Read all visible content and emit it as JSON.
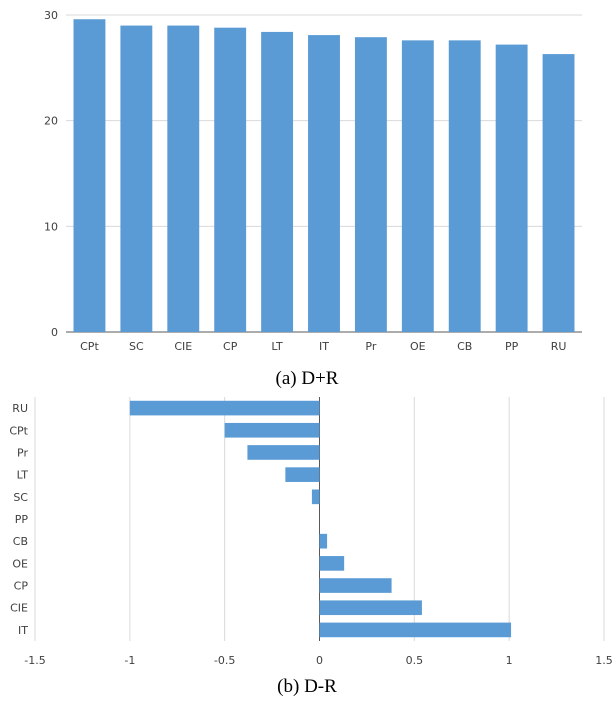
{
  "chart_data": [
    {
      "type": "bar",
      "orientation": "vertical",
      "caption": "(a) D+R",
      "categories": [
        "CPt",
        "SC",
        "CIE",
        "CP",
        "LT",
        "IT",
        "Pr",
        "OE",
        "CB",
        "PP",
        "RU"
      ],
      "values": [
        29.6,
        29.0,
        29.0,
        28.8,
        28.4,
        28.1,
        27.9,
        27.6,
        27.6,
        27.2,
        26.3
      ],
      "ylim": [
        0,
        30
      ],
      "yticks": [
        "0",
        "10",
        "20",
        "30"
      ],
      "grid": true,
      "bar_color": "#5b9bd5"
    },
    {
      "type": "bar",
      "orientation": "horizontal",
      "caption": "(b) D-R",
      "categories": [
        "RU",
        "CPt",
        "Pr",
        "LT",
        "SC",
        "PP",
        "CB",
        "OE",
        "CP",
        "CIE",
        "IT"
      ],
      "values": [
        -1.0,
        -0.5,
        -0.38,
        -0.18,
        -0.04,
        0.0,
        0.04,
        0.13,
        0.38,
        0.54,
        1.01
      ],
      "xlim": [
        -1.5,
        1.5
      ],
      "xticks": [
        "-1.5",
        "-1",
        "-0.5",
        "0",
        "0.5",
        "1",
        "1.5"
      ],
      "grid": true,
      "bar_color": "#5b9bd5"
    }
  ]
}
